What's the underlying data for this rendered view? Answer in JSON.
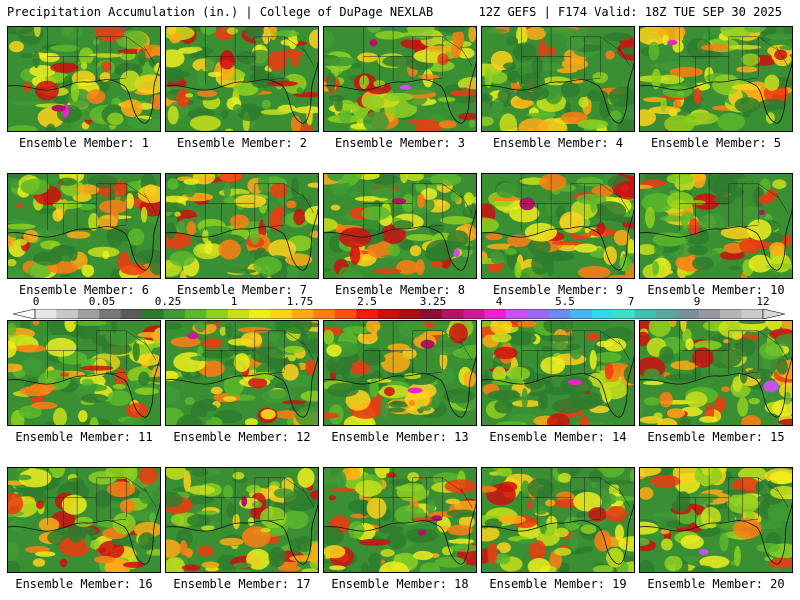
{
  "header": {
    "title_left": "Precipitation Accumulation (in.) | College of DuPage NEXLAB",
    "title_right": "12Z GEFS | F174 Valid: 18Z TUE SEP 30 2025"
  },
  "panels": [
    {
      "label": "Ensemble Member: 1",
      "seed": 11
    },
    {
      "label": "Ensemble Member: 2",
      "seed": 23
    },
    {
      "label": "Ensemble Member: 3",
      "seed": 37
    },
    {
      "label": "Ensemble Member: 4",
      "seed": 41
    },
    {
      "label": "Ensemble Member: 5",
      "seed": 53
    },
    {
      "label": "Ensemble Member: 6",
      "seed": 67
    },
    {
      "label": "Ensemble Member: 7",
      "seed": 71
    },
    {
      "label": "Ensemble Member: 8",
      "seed": 83
    },
    {
      "label": "Ensemble Member: 9",
      "seed": 97
    },
    {
      "label": "Ensemble Member: 10",
      "seed": 101
    },
    {
      "label": "Ensemble Member: 11",
      "seed": 113
    },
    {
      "label": "Ensemble Member: 12",
      "seed": 127
    },
    {
      "label": "Ensemble Member: 13",
      "seed": 131
    },
    {
      "label": "Ensemble Member: 14",
      "seed": 149
    },
    {
      "label": "Ensemble Member: 15",
      "seed": 151
    },
    {
      "label": "Ensemble Member: 16",
      "seed": 163
    },
    {
      "label": "Ensemble Member: 17",
      "seed": 173
    },
    {
      "label": "Ensemble Member: 18",
      "seed": 181
    },
    {
      "label": "Ensemble Member: 19",
      "seed": 191
    },
    {
      "label": "Ensemble Member: 20",
      "seed": 197
    }
  ],
  "colorbar": {
    "tick_labels": [
      "0",
      "0.05",
      "0.25",
      "1",
      "1.75",
      "2.5",
      "3.25",
      "4",
      "5.5",
      "7",
      "9",
      "12"
    ],
    "colors": [
      "#e6e6e6",
      "#c8c8c8",
      "#a0a0a0",
      "#787878",
      "#5a5a5a",
      "#2c7a2c",
      "#3e9a34",
      "#5cb82c",
      "#8ed020",
      "#c8e01c",
      "#eeee1e",
      "#ffd21c",
      "#ffaa16",
      "#ff7e14",
      "#ff5012",
      "#f01c10",
      "#cc1010",
      "#a81010",
      "#8c1030",
      "#b01464",
      "#d0189a",
      "#ee20d2",
      "#c850f0",
      "#9a6af0",
      "#6c8cf0",
      "#48b4f0",
      "#30d8e8",
      "#40e0c8",
      "#40c0b0",
      "#58a8a0",
      "#7890a0",
      "#9898a0",
      "#b4b4b8",
      "#cacace"
    ],
    "low_color": "#ffffff",
    "high_color": "#d8d8d8"
  }
}
